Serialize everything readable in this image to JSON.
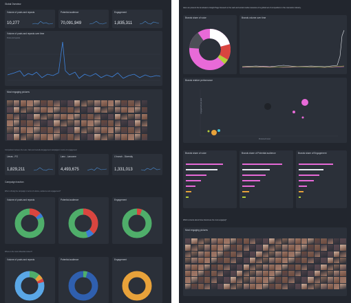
{
  "left": {
    "header": "Global Overview",
    "kpis": [
      {
        "label": "Volume of posts and reposts",
        "value": "10,277"
      },
      {
        "label": "Potential audience",
        "value": "70,091,949"
      },
      {
        "label": "Engagement",
        "value": "1,835,311"
      }
    ],
    "volume_chart": {
      "title": "Volume of posts and reposts over time",
      "legend": "Posts and reposts"
    },
    "most_engaging": {
      "title": "Most engaging pictures"
    },
    "campaign_intro": "Comparison between the Lanc, Nars and Lamelle Engagement campaigns in terms of engagement",
    "campaigns": [
      {
        "label": "Lénas - FG",
        "value": "1,829,211"
      },
      {
        "label": "Lanc - Lancome",
        "value": "4,493,675"
      },
      {
        "label": "L'Inanch - Diversity",
        "value": "1,331,013"
      }
    ],
    "campaign_traction": "Campaign traction",
    "who_question": "Who is driving the campaign in terms of volume, audience and engagement?",
    "donut_row1": [
      {
        "title": "Volume of posts and reposts"
      },
      {
        "title": "Potential audience"
      },
      {
        "title": "Engagement"
      }
    ],
    "where_question": "Where is the most influential content?",
    "donut_row2": [
      {
        "title": "Volume of posts and reposts"
      },
      {
        "title": "Potential audience"
      },
      {
        "title": "Engagement"
      }
    ]
  },
  "right": {
    "intro": "Here we present the Amelware's Insight Page focused on the web and social media measures of a global set of competitors in the cosmetics industry.",
    "share_of_voice": {
      "title": "Brands share of voice"
    },
    "volume_over_time": {
      "title": "Brands volume over time"
    },
    "relative_performance": {
      "title": "Brands relative performance",
      "xlabel": "Preferred brand",
      "ylabel": "Engagement per post"
    },
    "bars": [
      {
        "title": "Brands share of voice"
      },
      {
        "title": "Brands share of Potential audience"
      },
      {
        "title": "Brands share of Engagement"
      }
    ],
    "which_question": "Which contents about those brands are the most engaging?",
    "most_engaging": {
      "title": "Most engaging pictures"
    }
  },
  "colors": {
    "green": "#4fae6a",
    "red": "#d9453f",
    "blue": "#3b7bd8",
    "orange": "#e8a23a",
    "pink": "#e86ad8",
    "teal": "#4fc1c9",
    "cyan": "#44c3d6"
  }
}
